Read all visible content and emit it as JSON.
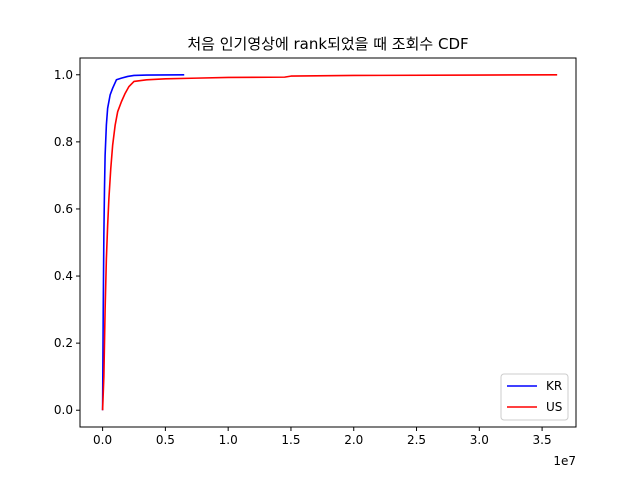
{
  "chart_data": {
    "type": "line",
    "title": "처음 인기영상에 rank되었을 때 조회수 CDF",
    "xlabel": "",
    "ylabel": "",
    "x_offset_label": "1e7",
    "x_unit_scale": 10000000,
    "xlim": [
      -1800000,
      37700000
    ],
    "ylim": [
      -0.05,
      1.05
    ],
    "x_ticks": [
      0,
      5000000,
      10000000,
      15000000,
      20000000,
      25000000,
      30000000,
      35000000
    ],
    "x_tick_labels": [
      "0.0",
      "0.5",
      "1.0",
      "1.5",
      "2.0",
      "2.5",
      "3.0",
      "3.5"
    ],
    "y_ticks": [
      0.0,
      0.2,
      0.4,
      0.6,
      0.8,
      1.0
    ],
    "y_tick_labels": [
      "0.0",
      "0.2",
      "0.4",
      "0.6",
      "0.8",
      "1.0"
    ],
    "grid": false,
    "legend_position": "lower-right",
    "series": [
      {
        "name": "KR",
        "color": "#0000ff",
        "x": [
          0,
          50000,
          100000,
          150000,
          200000,
          300000,
          400000,
          600000,
          800000,
          1100000,
          1500000,
          2000000,
          2500000,
          3500000,
          5000000,
          6500000
        ],
        "y": [
          0.0,
          0.3,
          0.52,
          0.66,
          0.76,
          0.85,
          0.9,
          0.94,
          0.96,
          0.985,
          0.99,
          0.995,
          0.998,
          0.999,
          0.9995,
          1.0
        ]
      },
      {
        "name": "US",
        "color": "#ff0000",
        "x": [
          0,
          100000,
          200000,
          300000,
          400000,
          500000,
          650000,
          800000,
          1000000,
          1200000,
          1500000,
          1800000,
          2100000,
          2500000,
          3500000,
          5000000,
          7500000,
          10000000,
          14500000,
          15000000,
          20000000,
          30000000,
          36200000
        ],
        "y": [
          0.0,
          0.1,
          0.3,
          0.45,
          0.55,
          0.63,
          0.72,
          0.79,
          0.85,
          0.89,
          0.92,
          0.945,
          0.965,
          0.98,
          0.985,
          0.988,
          0.99,
          0.992,
          0.993,
          0.996,
          0.998,
          0.999,
          1.0
        ]
      }
    ]
  }
}
